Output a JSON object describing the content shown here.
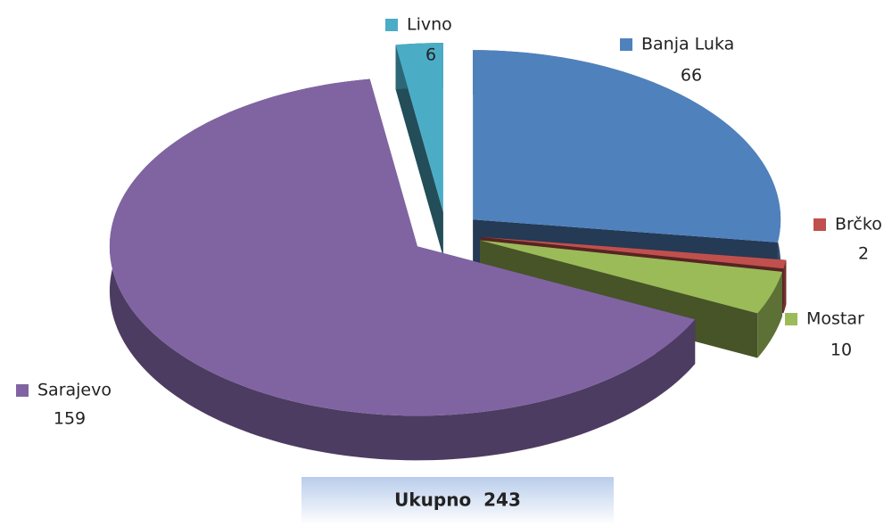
{
  "chart_data": {
    "type": "pie",
    "categories": [
      "Banja Luka",
      "Brčko",
      "Mostar",
      "Sarajevo",
      "Livno"
    ],
    "values": [
      66,
      2,
      10,
      159,
      6
    ],
    "colors": [
      "#4f81bd",
      "#c0504d",
      "#9bbb59",
      "#8064a2",
      "#4bacc6"
    ],
    "annotation": "Ukupno  243"
  }
}
